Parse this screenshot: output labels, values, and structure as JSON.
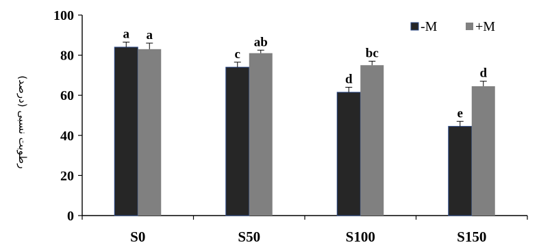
{
  "chart_data": {
    "type": "bar",
    "title": "",
    "xlabel": "",
    "ylabel": "رطوبت نسبی (درصد)",
    "ylim": [
      0,
      100
    ],
    "yticks": [
      0,
      20,
      40,
      60,
      80,
      100
    ],
    "categories": [
      "S0",
      "S50",
      "S100",
      "S150"
    ],
    "series": [
      {
        "name": "-M",
        "color": "#262626",
        "values": [
          84,
          74,
          61.5,
          44.5
        ],
        "errors": [
          2.5,
          2.5,
          2.5,
          2.5
        ],
        "labels": [
          "a",
          "c",
          "d",
          "e"
        ]
      },
      {
        "name": "+M",
        "color": "#808080",
        "values": [
          83,
          81,
          75,
          64.5
        ],
        "errors": [
          3,
          1.5,
          2,
          2.5
        ],
        "labels": [
          "a",
          "ab",
          "bc",
          "d"
        ]
      }
    ],
    "legend_position": "top-right",
    "grid": false
  }
}
